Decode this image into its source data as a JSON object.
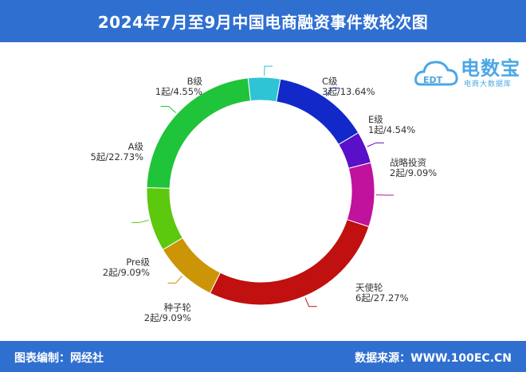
{
  "header": {
    "title": "2024年7月至9月中国电商融资事件数轮次图"
  },
  "footer": {
    "left_text": "图表编制：网经社",
    "right_text": "数据来源：WWW.100EC.CN"
  },
  "logo": {
    "name": "电数宝",
    "subtitle": "电商大数据库",
    "badge": "EDT"
  },
  "colors": {
    "header_bg": "#2f6fd0",
    "B级": "#2ec4d6",
    "C级": "#1228c8",
    "E级": "#5a0fc8",
    "战略投资": "#c0129c",
    "天使轮": "#c0100f",
    "种子轮": "#cc9407",
    "Pre级": "#5cc80e",
    "A级": "#1fc43a"
  },
  "chart_data": {
    "type": "pie",
    "donut": true,
    "title": "2024年7月至9月中国电商融资事件数轮次图",
    "slices": [
      {
        "name": "B级",
        "count_label": "1起",
        "percent_label": "4.55%",
        "value": 1,
        "percent": 4.55,
        "color": "#2ec4d6"
      },
      {
        "name": "C级",
        "count_label": "3起",
        "percent_label": "13.64%",
        "value": 3,
        "percent": 13.64,
        "color": "#1228c8"
      },
      {
        "name": "E级",
        "count_label": "1起",
        "percent_label": "4.54%",
        "value": 1,
        "percent": 4.54,
        "color": "#5a0fc8"
      },
      {
        "name": "战略投资",
        "count_label": "2起",
        "percent_label": "9.09%",
        "value": 2,
        "percent": 9.09,
        "color": "#c0129c"
      },
      {
        "name": "天使轮",
        "count_label": "6起",
        "percent_label": "27.27%",
        "value": 6,
        "percent": 27.27,
        "color": "#c0100f"
      },
      {
        "name": "种子轮",
        "count_label": "2起",
        "percent_label": "9.09%",
        "value": 2,
        "percent": 9.09,
        "color": "#cc9407"
      },
      {
        "name": "Pre级",
        "count_label": "2起",
        "percent_label": "9.09%",
        "value": 2,
        "percent": 9.09,
        "color": "#5cc80e"
      },
      {
        "name": "A级",
        "count_label": "5起",
        "percent_label": "22.73%",
        "value": 5,
        "percent": 22.73,
        "color": "#1fc43a"
      }
    ]
  }
}
